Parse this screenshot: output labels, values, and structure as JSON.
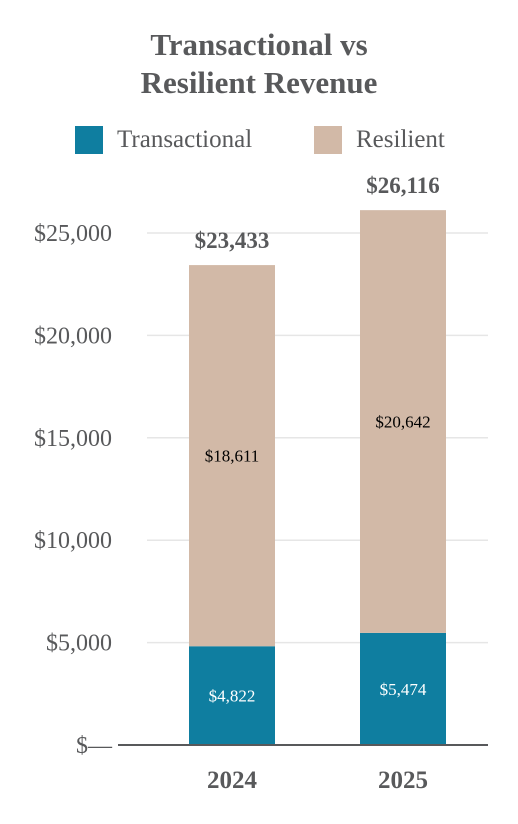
{
  "chart_data": {
    "type": "bar",
    "stacked": true,
    "title": "Transactional vs Resilient Revenue",
    "title_lines": [
      "Transactional vs",
      "Resilient Revenue"
    ],
    "categories": [
      "2024",
      "2025"
    ],
    "series": [
      {
        "name": "Transactional",
        "color": "#0f7ea0",
        "values": [
          4822,
          5474
        ],
        "labels": [
          "$4,822",
          "$5,474"
        ]
      },
      {
        "name": "Resilient",
        "color": "#d2b9a7",
        "values": [
          18611,
          20642
        ],
        "labels": [
          "$18,611",
          "$20,642"
        ]
      }
    ],
    "totals": [
      23433,
      26116
    ],
    "total_labels": [
      "$23,433",
      "$26,116"
    ],
    "y_ticks": [
      0,
      5000,
      10000,
      15000,
      20000,
      25000
    ],
    "y_tick_labels": [
      "$—",
      "$5,000",
      "$10,000",
      "$15,000",
      "$20,000",
      "$25,000"
    ],
    "ylim": [
      0,
      26116
    ],
    "xlabel": "",
    "ylabel": "",
    "grid": true,
    "legend_position": "top",
    "colors": {
      "text": "#58595b",
      "grid": "#e6e6e6",
      "axis": "#58595b"
    }
  }
}
